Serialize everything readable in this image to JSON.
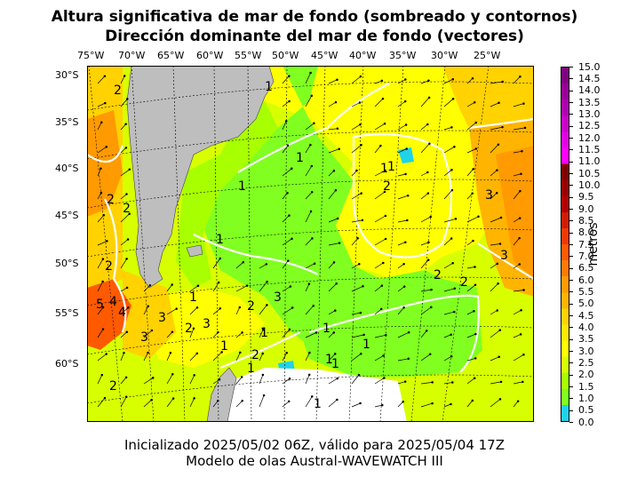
{
  "title_line1": "Altura significativa de mar de fondo (sombreado y contornos)",
  "title_line2": "Dirección dominante del mar de fondo (vectores)",
  "lon_labels": [
    "75°W",
    "70°W",
    "65°W",
    "60°W",
    "55°W",
    "50°W",
    "45°W",
    "40°W",
    "35°W",
    "30°W",
    "25°W"
  ],
  "lat_labels": [
    "30°S",
    "35°S",
    "40°S",
    "45°S",
    "50°S",
    "55°S",
    "60°S"
  ],
  "colorbar": {
    "label": "metros",
    "ticks": [
      "0.0",
      "0.5",
      "1.0",
      "1.5",
      "2.0",
      "2.5",
      "3.0",
      "3.5",
      "4.0",
      "4.5",
      "5.0",
      "5.5",
      "6.0",
      "6.5",
      "7.0",
      "7.5",
      "8.0",
      "8.5",
      "9.0",
      "9.5",
      "10.0",
      "10.5",
      "11.0",
      "11.5",
      "12.0",
      "12.5",
      "13.0",
      "13.5",
      "14.0",
      "14.5",
      "15.0"
    ],
    "colors": [
      "#1fd3e8",
      "#80ff20",
      "#a8ff00",
      "#d8ff00",
      "#ffff00",
      "#ffea00",
      "#ffd200",
      "#ffb400",
      "#ff9a00",
      "#ff7a00",
      "#ff5a00",
      "#ee3a00",
      "#d01c00",
      "#b40000",
      "#9a0000",
      "#800000",
      "#ff00ff",
      "#e400e4",
      "#c800c8",
      "#b000b0",
      "#980098",
      "#800080"
    ]
  },
  "contour_labels": [
    "1",
    "1",
    "1",
    "1",
    "1",
    "1",
    "1",
    "1",
    "1",
    "1",
    "1",
    "1",
    "1",
    "1",
    "1",
    "2",
    "2",
    "2",
    "2",
    "2",
    "2",
    "2",
    "2",
    "2",
    "2",
    "2",
    "3",
    "3",
    "3",
    "3",
    "3",
    "3",
    "4",
    "4",
    "5"
  ],
  "footer_line1": "Inicializado 2025/05/02 06Z, válido para 2025/05/04 17Z",
  "footer_line2": "Modelo de olas Austral-WAVEWATCH III"
}
